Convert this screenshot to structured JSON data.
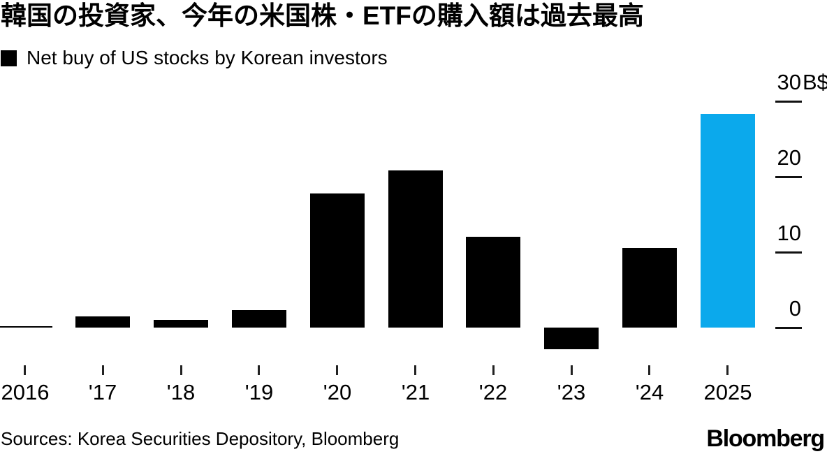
{
  "title": "韓国の投資家、今年の米国株・ETFの購入額は過去最高",
  "legend": {
    "label": "Net buy of US stocks by Korean investors",
    "swatch_color": "#000000"
  },
  "chart_data": {
    "type": "bar",
    "title": "Net buy of US stocks by Korean investors",
    "categories": [
      "2016",
      "'17",
      "'18",
      "'19",
      "'20",
      "'21",
      "'22",
      "'23",
      "'24",
      "2025"
    ],
    "values": [
      0.2,
      1.5,
      1.0,
      2.3,
      17.8,
      20.8,
      12.0,
      -2.9,
      10.6,
      28.3
    ],
    "unit": "B$",
    "ylim": [
      -5,
      30
    ],
    "yticks": [
      {
        "value": 30,
        "label": "30",
        "suffix": "B$"
      },
      {
        "value": 20,
        "label": "20",
        "suffix": ""
      },
      {
        "value": 10,
        "label": "10",
        "suffix": ""
      },
      {
        "value": 0,
        "label": "0",
        "suffix": ""
      }
    ],
    "grid": false,
    "legend_position": "top-left",
    "highlight_index": 9,
    "colors": {
      "bar_default": "#000000",
      "bar_highlight": "#0ba9ec",
      "background": "#ffffff",
      "text": "#000000"
    }
  },
  "footer": {
    "sources": "Sources: Korea Securities Depository, Bloomberg",
    "brand": "Bloomberg"
  }
}
